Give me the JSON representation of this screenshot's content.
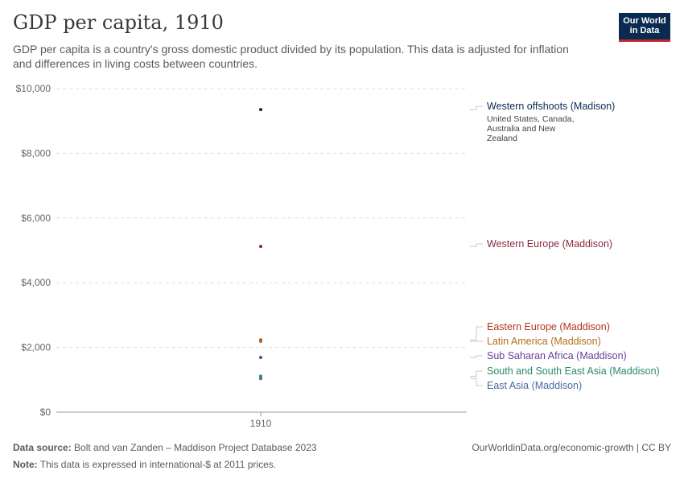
{
  "header": {
    "title": "GDP per capita, 1910",
    "subtitle": "GDP per capita is a country's gross domestic product divided by its population. This data is adjusted for inflation and differences in living costs between countries."
  },
  "logo": {
    "line1": "Our World",
    "line2": "in Data"
  },
  "footer": {
    "source_label": "Data source:",
    "source_text": "Bolt and van Zanden – Maddison Project Database 2023",
    "note_label": "Note:",
    "note_text": "This data is expressed in international-$ at 2011 prices.",
    "link_text": "OurWorldinData.org/economic-growth | CC BY"
  },
  "chart_data": {
    "type": "scatter",
    "title": "GDP per capita, 1910",
    "x": [
      "1910"
    ],
    "ylim": [
      0,
      10000
    ],
    "yticks": [
      0,
      2000,
      4000,
      6000,
      8000,
      10000
    ],
    "ytick_labels": [
      "$0",
      "$2,000",
      "$4,000",
      "$6,000",
      "$8,000",
      "$10,000"
    ],
    "grid": true,
    "legend_placement": "right",
    "series": [
      {
        "name": "Western offshoots (Madison)",
        "note": [
          "United States, Canada,",
          "Australia and New",
          "Zealand"
        ],
        "values": [
          9350
        ],
        "color": "#0b2a4f"
      },
      {
        "name": "Western Europe (Maddison)",
        "values": [
          5120
        ],
        "color": "#8a2b3e"
      },
      {
        "name": "Eastern Europe (Maddison)",
        "values": [
          2230
        ],
        "color": "#b2361d"
      },
      {
        "name": "Latin America (Maddison)",
        "values": [
          2190
        ],
        "color": "#b0701a"
      },
      {
        "name": "Sub Saharan Africa (Maddison)",
        "values": [
          1690
        ],
        "color": "#6a3e9b"
      },
      {
        "name": "South and South East Asia (Maddison)",
        "values": [
          1110
        ],
        "color": "#2a8a6a"
      },
      {
        "name": "East Asia (Maddison)",
        "values": [
          1040
        ],
        "color": "#4a6a9e"
      }
    ]
  }
}
